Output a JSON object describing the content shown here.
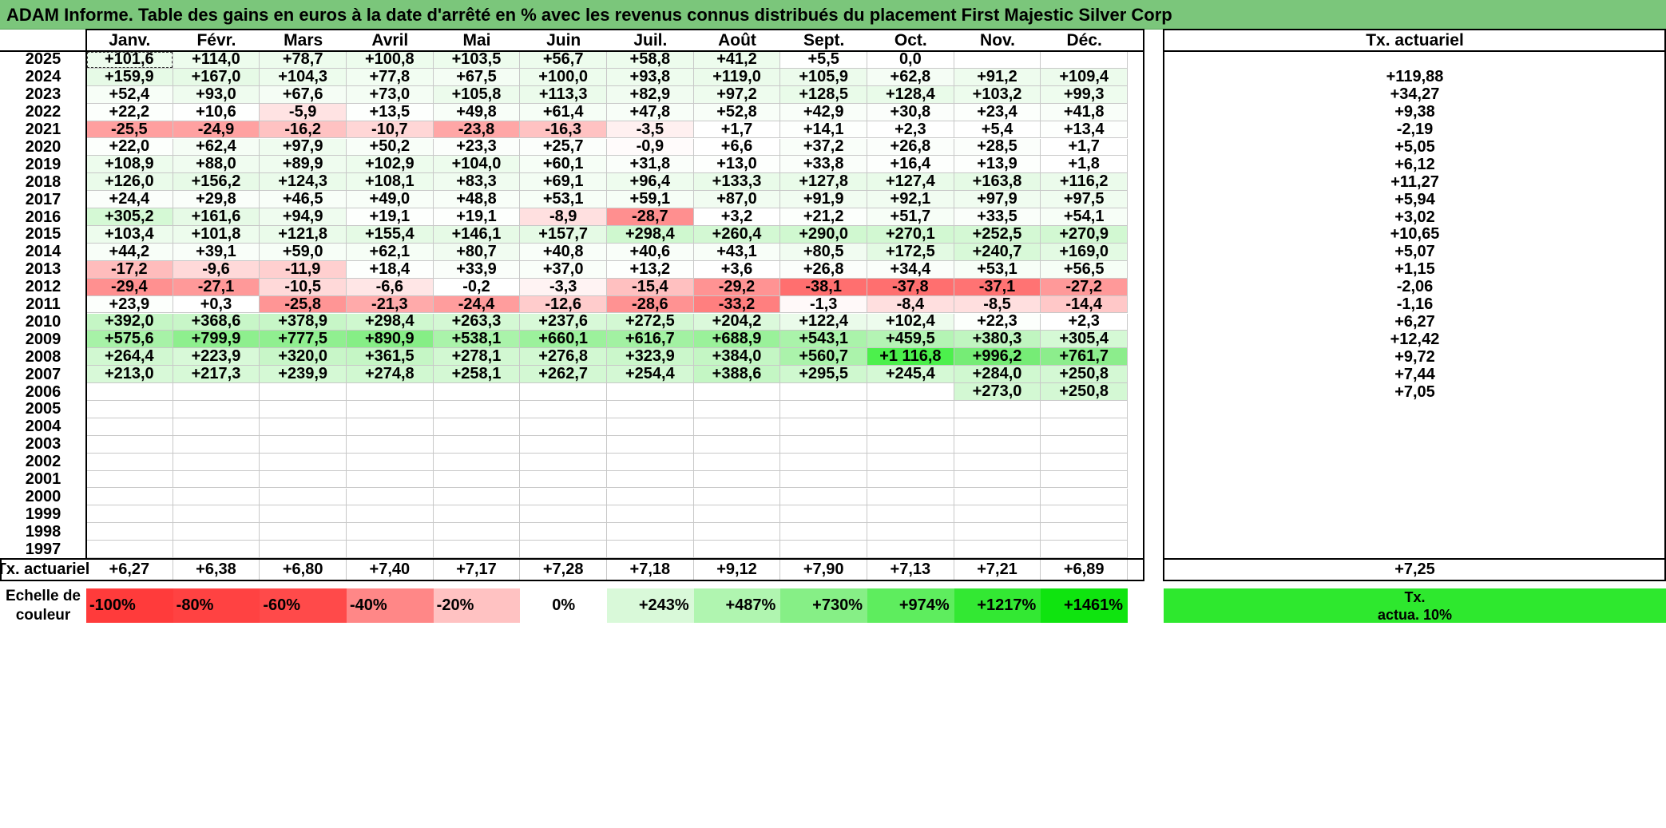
{
  "title": "ADAM Informe. Table des gains en euros à la date d'arrêté en % avec les revenus connus distribués du placement First Majestic Silver Corp",
  "months": [
    "Janv.",
    "Févr.",
    "Mars",
    "Avril",
    "Mai",
    "Juin",
    "Juil.",
    "Août",
    "Sept.",
    "Oct.",
    "Nov.",
    "Déc."
  ],
  "tx_header": "Tx. actuariel",
  "rows": [
    {
      "year": "2025",
      "values": [
        "+101,6",
        "+114,0",
        "+78,7",
        "+100,8",
        "+103,5",
        "+56,7",
        "+58,8",
        "+41,2",
        "+5,5",
        "0,0",
        "",
        ""
      ],
      "tx": ""
    },
    {
      "year": "2024",
      "values": [
        "+159,9",
        "+167,0",
        "+104,3",
        "+77,8",
        "+67,5",
        "+100,0",
        "+93,8",
        "+119,0",
        "+105,9",
        "+62,8",
        "+91,2",
        "+109,4"
      ],
      "tx": "+119,88"
    },
    {
      "year": "2023",
      "values": [
        "+52,4",
        "+93,0",
        "+67,6",
        "+73,0",
        "+105,8",
        "+113,3",
        "+82,9",
        "+97,2",
        "+128,5",
        "+128,4",
        "+103,2",
        "+99,3"
      ],
      "tx": "+34,27"
    },
    {
      "year": "2022",
      "values": [
        "+22,2",
        "+10,6",
        "-5,9",
        "+13,5",
        "+49,8",
        "+61,4",
        "+47,8",
        "+52,8",
        "+42,9",
        "+30,8",
        "+23,4",
        "+41,8"
      ],
      "tx": "+9,38"
    },
    {
      "year": "2021",
      "values": [
        "-25,5",
        "-24,9",
        "-16,2",
        "-10,7",
        "-23,8",
        "-16,3",
        "-3,5",
        "+1,7",
        "+14,1",
        "+2,3",
        "+5,4",
        "+13,4"
      ],
      "tx": "-2,19"
    },
    {
      "year": "2020",
      "values": [
        "+22,0",
        "+62,4",
        "+97,9",
        "+50,2",
        "+23,3",
        "+25,7",
        "-0,9",
        "+6,6",
        "+37,2",
        "+26,8",
        "+28,5",
        "+1,7"
      ],
      "tx": "+5,05"
    },
    {
      "year": "2019",
      "values": [
        "+108,9",
        "+88,0",
        "+89,9",
        "+102,9",
        "+104,0",
        "+60,1",
        "+31,8",
        "+13,0",
        "+33,8",
        "+16,4",
        "+13,9",
        "+1,8"
      ],
      "tx": "+6,12"
    },
    {
      "year": "2018",
      "values": [
        "+126,0",
        "+156,2",
        "+124,3",
        "+108,1",
        "+83,3",
        "+69,1",
        "+96,4",
        "+133,3",
        "+127,8",
        "+127,4",
        "+163,8",
        "+116,2"
      ],
      "tx": "+11,27"
    },
    {
      "year": "2017",
      "values": [
        "+24,4",
        "+29,8",
        "+46,5",
        "+49,0",
        "+48,8",
        "+53,1",
        "+59,1",
        "+87,0",
        "+91,9",
        "+92,1",
        "+97,9",
        "+97,5"
      ],
      "tx": "+5,94"
    },
    {
      "year": "2016",
      "values": [
        "+305,2",
        "+161,6",
        "+94,9",
        "+19,1",
        "+19,1",
        "-8,9",
        "-28,7",
        "+3,2",
        "+21,2",
        "+51,7",
        "+33,5",
        "+54,1"
      ],
      "tx": "+3,02"
    },
    {
      "year": "2015",
      "values": [
        "+103,4",
        "+101,8",
        "+121,8",
        "+155,4",
        "+146,1",
        "+157,7",
        "+298,4",
        "+260,4",
        "+290,0",
        "+270,1",
        "+252,5",
        "+270,9"
      ],
      "tx": "+10,65"
    },
    {
      "year": "2014",
      "values": [
        "+44,2",
        "+39,1",
        "+59,0",
        "+62,1",
        "+80,7",
        "+40,8",
        "+40,6",
        "+43,1",
        "+80,5",
        "+172,5",
        "+240,7",
        "+169,0"
      ],
      "tx": "+5,07"
    },
    {
      "year": "2013",
      "values": [
        "-17,2",
        "-9,6",
        "-11,9",
        "+18,4",
        "+33,9",
        "+37,0",
        "+13,2",
        "+3,6",
        "+26,8",
        "+34,4",
        "+53,1",
        "+56,5"
      ],
      "tx": "+1,15"
    },
    {
      "year": "2012",
      "values": [
        "-29,4",
        "-27,1",
        "-10,5",
        "-6,6",
        "-0,2",
        "-3,3",
        "-15,4",
        "-29,2",
        "-38,1",
        "-37,8",
        "-37,1",
        "-27,2"
      ],
      "tx": "-2,06"
    },
    {
      "year": "2011",
      "values": [
        "+23,9",
        "+0,3",
        "-25,8",
        "-21,3",
        "-24,4",
        "-12,6",
        "-28,6",
        "-33,2",
        "-1,3",
        "-8,4",
        "-8,5",
        "-14,4"
      ],
      "tx": "-1,16"
    },
    {
      "year": "2010",
      "values": [
        "+392,0",
        "+368,6",
        "+378,9",
        "+298,4",
        "+263,3",
        "+237,6",
        "+272,5",
        "+204,2",
        "+122,4",
        "+102,4",
        "+22,3",
        "+2,3"
      ],
      "tx": "+6,27"
    },
    {
      "year": "2009",
      "values": [
        "+575,6",
        "+799,9",
        "+777,5",
        "+890,9",
        "+538,1",
        "+660,1",
        "+616,7",
        "+688,9",
        "+543,1",
        "+459,5",
        "+380,3",
        "+305,4"
      ],
      "tx": "+12,42"
    },
    {
      "year": "2008",
      "values": [
        "+264,4",
        "+223,9",
        "+320,0",
        "+361,5",
        "+278,1",
        "+276,8",
        "+323,9",
        "+384,0",
        "+560,7",
        "+1 116,8",
        "+996,2",
        "+761,7"
      ],
      "tx": "+9,72"
    },
    {
      "year": "2007",
      "values": [
        "+213,0",
        "+217,3",
        "+239,9",
        "+274,8",
        "+258,1",
        "+262,7",
        "+254,4",
        "+388,6",
        "+295,5",
        "+245,4",
        "+284,0",
        "+250,8"
      ],
      "tx": "+7,44"
    },
    {
      "year": "2006",
      "values": [
        "",
        "",
        "",
        "",
        "",
        "",
        "",
        "",
        "",
        "",
        "+273,0",
        "+250,8"
      ],
      "tx": "+7,05"
    },
    {
      "year": "2005",
      "values": [
        "",
        "",
        "",
        "",
        "",
        "",
        "",
        "",
        "",
        "",
        "",
        ""
      ],
      "tx": ""
    },
    {
      "year": "2004",
      "values": [
        "",
        "",
        "",
        "",
        "",
        "",
        "",
        "",
        "",
        "",
        "",
        ""
      ],
      "tx": ""
    },
    {
      "year": "2003",
      "values": [
        "",
        "",
        "",
        "",
        "",
        "",
        "",
        "",
        "",
        "",
        "",
        ""
      ],
      "tx": ""
    },
    {
      "year": "2002",
      "values": [
        "",
        "",
        "",
        "",
        "",
        "",
        "",
        "",
        "",
        "",
        "",
        ""
      ],
      "tx": ""
    },
    {
      "year": "2001",
      "values": [
        "",
        "",
        "",
        "",
        "",
        "",
        "",
        "",
        "",
        "",
        "",
        ""
      ],
      "tx": ""
    },
    {
      "year": "2000",
      "values": [
        "",
        "",
        "",
        "",
        "",
        "",
        "",
        "",
        "",
        "",
        "",
        ""
      ],
      "tx": ""
    },
    {
      "year": "1999",
      "values": [
        "",
        "",
        "",
        "",
        "",
        "",
        "",
        "",
        "",
        "",
        "",
        ""
      ],
      "tx": ""
    },
    {
      "year": "1998",
      "values": [
        "",
        "",
        "",
        "",
        "",
        "",
        "",
        "",
        "",
        "",
        "",
        ""
      ],
      "tx": ""
    },
    {
      "year": "1997",
      "values": [
        "",
        "",
        "",
        "",
        "",
        "",
        "",
        "",
        "",
        "",
        "",
        ""
      ],
      "tx": ""
    }
  ],
  "cell_colors": [
    [
      "#edfced",
      "#edfced",
      "#edfced",
      "#edfced",
      "#edfced",
      "#edfced",
      "#edfced",
      "#edfced",
      "#fefffe",
      "#ffffff",
      "#ffffff",
      "#ffffff"
    ],
    [
      "#e6fae6",
      "#e6fae6",
      "#edfced",
      "#f2fdf2",
      "#f4fdf4",
      "#edfced",
      "#eefcee",
      "#ebfbeb",
      "#ecfbec",
      "#f5fdf5",
      "#eefcee",
      "#ecfbec"
    ],
    [
      "#f7fef7",
      "#effcef",
      "#f5fdf5",
      "#f4fdf4",
      "#ecfbec",
      "#ebfbeb",
      "#f1fcf1",
      "#eefcee",
      "#e9fbe9",
      "#e9fbe9",
      "#edfced",
      "#eefcee"
    ],
    [
      "#fcfffc",
      "#fefffe",
      "#ffe3e3",
      "#fdfffd",
      "#f8fef8",
      "#f6fef6",
      "#f8fef8",
      "#f8fef8",
      "#f9fef9",
      "#fbfefb",
      "#fcfffc",
      "#f9fef9"
    ],
    [
      "#ff9f9f",
      "#ffa1a1",
      "#ffc2c2",
      "#ffd6d6",
      "#ffa6a6",
      "#ffc2c2",
      "#fff0f0",
      "#ffffff",
      "#fdfffd",
      "#ffffff",
      "#ffffff",
      "#fdfffd"
    ],
    [
      "#fcfffc",
      "#f5fdf5",
      "#effcef",
      "#f8fef8",
      "#fbfefb",
      "#fbfefb",
      "#fffbfb",
      "#ffffff",
      "#f9fef9",
      "#fbfefb",
      "#fbfefb",
      "#ffffff"
    ],
    [
      "#edfced",
      "#f0fcf0",
      "#effcef",
      "#edfced",
      "#edfced",
      "#f6fef6",
      "#fafefa",
      "#fdfffd",
      "#fafefa",
      "#fdfffd",
      "#fdfffd",
      "#ffffff"
    ],
    [
      "#eafbea",
      "#e7fae7",
      "#eafbea",
      "#edfced",
      "#f0fcf0",
      "#f3fdf3",
      "#eefcee",
      "#e9fbe9",
      "#e9fbe9",
      "#e9fbe9",
      "#e5fae5",
      "#ebfbeb"
    ],
    [
      "#fbfefb",
      "#fafefa",
      "#f8fef8",
      "#f8fef8",
      "#f8fef8",
      "#f7fef7",
      "#f6fef6",
      "#f1fcf1",
      "#f1fcf1",
      "#f1fcf1",
      "#f0fcf0",
      "#f0fcf0"
    ],
    [
      "#d5f9d5",
      "#e6fae6",
      "#effcef",
      "#fdfffd",
      "#fdfffd",
      "#ffe0e0",
      "#ff8f8f",
      "#ffffff",
      "#fcfffc",
      "#f7fef7",
      "#fafefa",
      "#f7fef7"
    ],
    [
      "#edfced",
      "#edfced",
      "#eafbea",
      "#e5fae5",
      "#e6fae6",
      "#e5fae5",
      "#cff8cf",
      "#d3f8d3",
      "#d0f8d0",
      "#d2f8d2",
      "#d4f8d4",
      "#d2f8d2"
    ],
    [
      "#f8fef8",
      "#f9fef9",
      "#f7fef7",
      "#f6fef6",
      "#f1fcf1",
      "#f9fef9",
      "#f9fef9",
      "#f8fef8",
      "#f1fcf1",
      "#e3fae3",
      "#d8f9d8",
      "#e3fae3"
    ],
    [
      "#ffbcbc",
      "#ffd9d9",
      "#ffcfcf",
      "#fdfffd",
      "#fafefa",
      "#f9fef9",
      "#fdfffd",
      "#ffffff",
      "#fbfefb",
      "#fafefa",
      "#f7fef7",
      "#f6fef6"
    ],
    [
      "#ff9090",
      "#ff9999",
      "#ffd9d9",
      "#ffe6e6",
      "#ffffff",
      "#fff3f3",
      "#ffc0c0",
      "#ff9393",
      "#ff6f6f",
      "#ff6f6f",
      "#ff7373",
      "#ff9999"
    ],
    [
      "#fcfffc",
      "#ffffff",
      "#ff9595",
      "#ffaaaa",
      "#ff9d9d",
      "#ffcccc",
      "#ff9292",
      "#ff7f7f",
      "#fff9f9",
      "#ffdfdf",
      "#ffdfdf",
      "#ffc8c8"
    ],
    [
      "#c5f6c5",
      "#c8f6c8",
      "#c7f6c7",
      "#cff8cf",
      "#d4f8d4",
      "#d8f9d8",
      "#d3f8d3",
      "#dbf9db",
      "#eafbea",
      "#edfced",
      "#fcfffc",
      "#ffffff"
    ],
    [
      "#a7f2a7",
      "#8eef8e",
      "#90ef90",
      "#86ee86",
      "#aaf3aa",
      "#9cf19c",
      "#a2f1a2",
      "#9af19a",
      "#aaf3aa",
      "#b4f4b4",
      "#c0f5c0",
      "#d5f9d5"
    ],
    [
      "#d1f8d1",
      "#d8f9d8",
      "#c8f6c8",
      "#c5f6c5",
      "#d2f8d2",
      "#d2f8d2",
      "#cbf7cb",
      "#c4f6c4",
      "#abf3ab",
      "#4cf04c",
      "#76ec76",
      "#8ced8c"
    ],
    [
      "#d8f9d8",
      "#d7f9d7",
      "#d5f9d5",
      "#d1f8d1",
      "#d4f8d4",
      "#d3f8d3",
      "#d4f8d4",
      "#c4f6c4",
      "#cff8cf",
      "#d5f9d5",
      "#d0f8d0",
      "#d4f8d4"
    ],
    [
      "#ffffff",
      "#ffffff",
      "#ffffff",
      "#ffffff",
      "#ffffff",
      "#ffffff",
      "#ffffff",
      "#ffffff",
      "#ffffff",
      "#ffffff",
      "#d3f8d3",
      "#d4f8d4"
    ],
    [
      "#ffffff",
      "#ffffff",
      "#ffffff",
      "#ffffff",
      "#ffffff",
      "#ffffff",
      "#ffffff",
      "#ffffff",
      "#ffffff",
      "#ffffff",
      "#ffffff",
      "#ffffff"
    ],
    [
      "#ffffff",
      "#ffffff",
      "#ffffff",
      "#ffffff",
      "#ffffff",
      "#ffffff",
      "#ffffff",
      "#ffffff",
      "#ffffff",
      "#ffffff",
      "#ffffff",
      "#ffffff"
    ],
    [
      "#ffffff",
      "#ffffff",
      "#ffffff",
      "#ffffff",
      "#ffffff",
      "#ffffff",
      "#ffffff",
      "#ffffff",
      "#ffffff",
      "#ffffff",
      "#ffffff",
      "#ffffff"
    ],
    [
      "#ffffff",
      "#ffffff",
      "#ffffff",
      "#ffffff",
      "#ffffff",
      "#ffffff",
      "#ffffff",
      "#ffffff",
      "#ffffff",
      "#ffffff",
      "#ffffff",
      "#ffffff"
    ],
    [
      "#ffffff",
      "#ffffff",
      "#ffffff",
      "#ffffff",
      "#ffffff",
      "#ffffff",
      "#ffffff",
      "#ffffff",
      "#ffffff",
      "#ffffff",
      "#ffffff",
      "#ffffff"
    ],
    [
      "#ffffff",
      "#ffffff",
      "#ffffff",
      "#ffffff",
      "#ffffff",
      "#ffffff",
      "#ffffff",
      "#ffffff",
      "#ffffff",
      "#ffffff",
      "#ffffff",
      "#ffffff"
    ],
    [
      "#ffffff",
      "#ffffff",
      "#ffffff",
      "#ffffff",
      "#ffffff",
      "#ffffff",
      "#ffffff",
      "#ffffff",
      "#ffffff",
      "#ffffff",
      "#ffffff",
      "#ffffff"
    ],
    [
      "#ffffff",
      "#ffffff",
      "#ffffff",
      "#ffffff",
      "#ffffff",
      "#ffffff",
      "#ffffff",
      "#ffffff",
      "#ffffff",
      "#ffffff",
      "#ffffff",
      "#ffffff"
    ],
    [
      "#ffffff",
      "#ffffff",
      "#ffffff",
      "#ffffff",
      "#ffffff",
      "#ffffff",
      "#ffffff",
      "#ffffff",
      "#ffffff",
      "#ffffff",
      "#ffffff",
      "#ffffff"
    ]
  ],
  "footer": {
    "label": "Tx. actuariel",
    "values": [
      "+6,27",
      "+6,38",
      "+6,80",
      "+7,40",
      "+7,17",
      "+7,28",
      "+7,18",
      "+9,12",
      "+7,90",
      "+7,13",
      "+7,21",
      "+6,89"
    ],
    "tx": "+7,25"
  },
  "scale": {
    "label_line1": "Echelle de",
    "label_line2": "couleur",
    "cells": [
      {
        "text": "-100%",
        "color": "#ff3b3b",
        "align": "left"
      },
      {
        "text": "-80%",
        "color": "#ff4242",
        "align": "left"
      },
      {
        "text": "-60%",
        "color": "#ff4a4a",
        "align": "left"
      },
      {
        "text": "-40%",
        "color": "#ff8787",
        "align": "left"
      },
      {
        "text": "-20%",
        "color": "#ffc2c2",
        "align": "left"
      },
      {
        "text": "0%",
        "color": "#ffffff",
        "align": "center"
      },
      {
        "text": "+243%",
        "color": "#d9f9d9",
        "align": "right"
      },
      {
        "text": "+487%",
        "color": "#b0f5b0",
        "align": "right"
      },
      {
        "text": "+730%",
        "color": "#86ef86",
        "align": "right"
      },
      {
        "text": "+974%",
        "color": "#5eed5e",
        "align": "right"
      },
      {
        "text": "+1217%",
        "color": "#33e833",
        "align": "right"
      },
      {
        "text": "+1461%",
        "color": "#0fe40f",
        "align": "right"
      }
    ],
    "tx_line1": "Tx.",
    "tx_line2": "actua. 10%",
    "tx_color": "#2ee82e"
  },
  "colors": {
    "title_bg": "#7bc67b",
    "grid_line": "#c8c8c8",
    "frame": "#000000"
  }
}
